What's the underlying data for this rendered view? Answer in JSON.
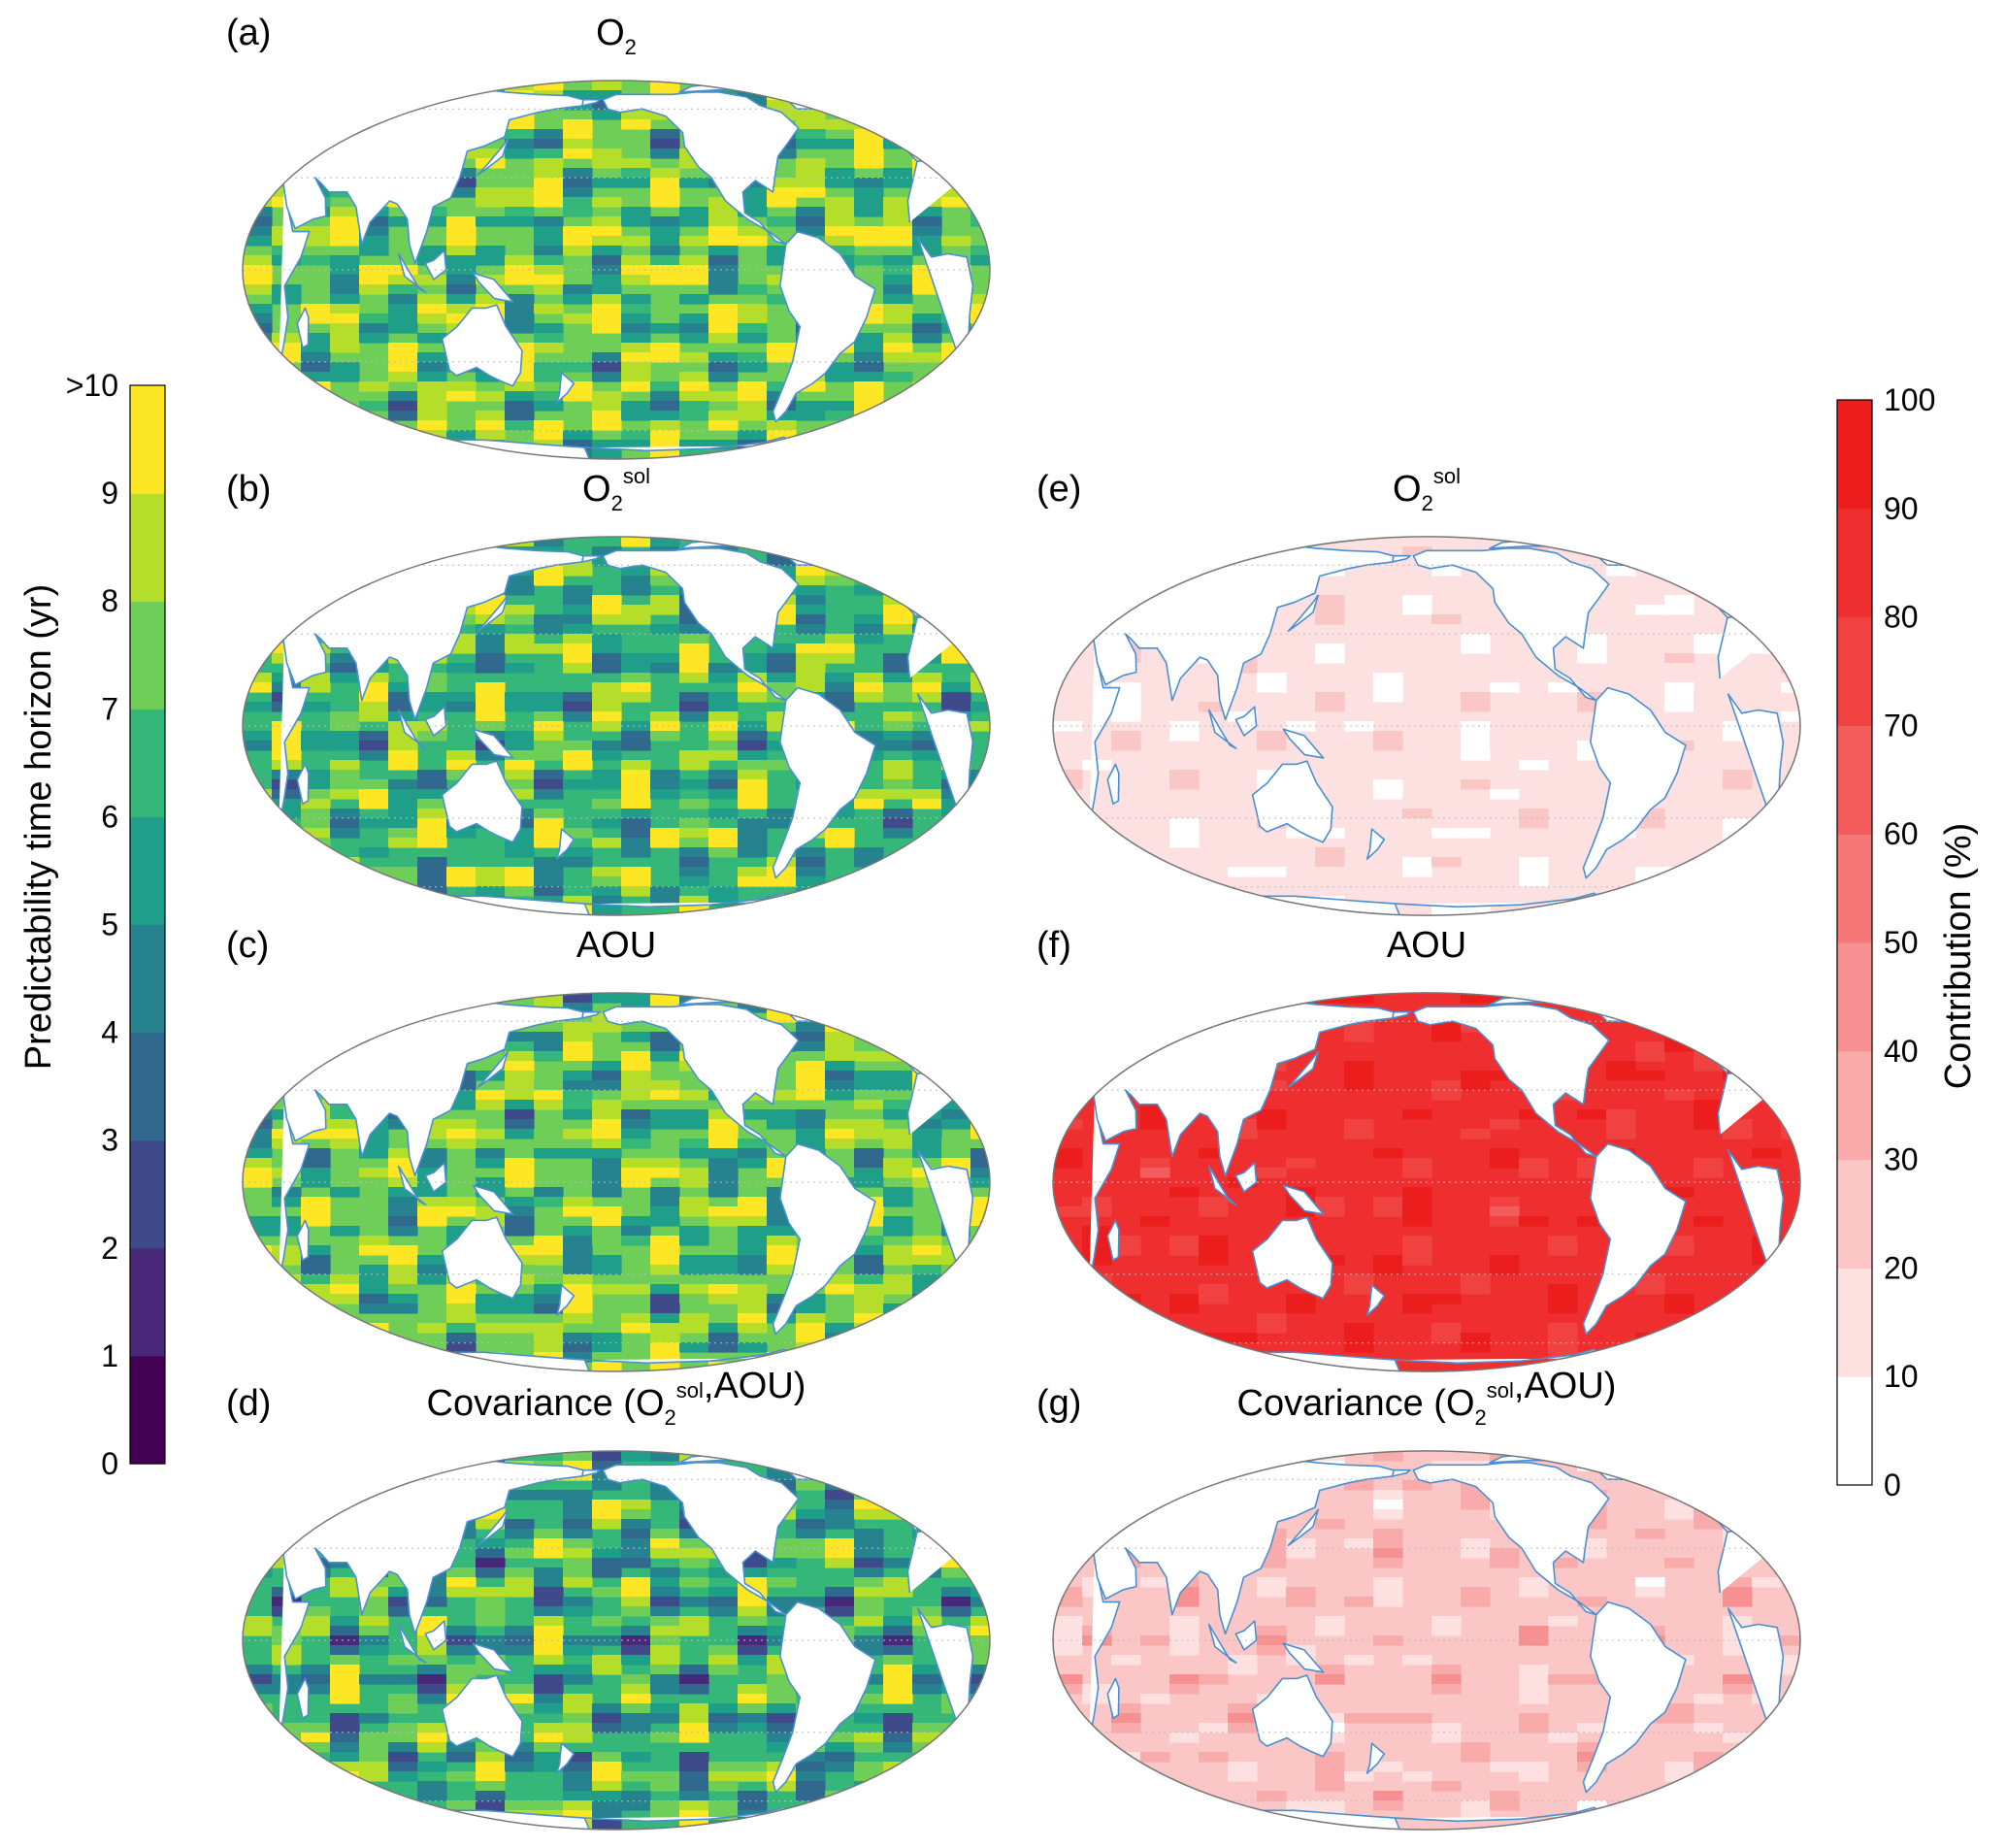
{
  "panels": [
    {
      "id": "a",
      "letter": "(a)",
      "title": "O",
      "sub": "2",
      "sup": "",
      "suffix": "",
      "colormap": "viridis",
      "base": 0.72,
      "amp": 0.5
    },
    {
      "id": "b",
      "letter": "(b)",
      "title": "O",
      "sub": "2",
      "sup": "sol",
      "suffix": "",
      "colormap": "viridis",
      "base": 0.68,
      "amp": 0.5
    },
    {
      "id": "c",
      "letter": "(c)",
      "title": "AOU",
      "sub": "",
      "sup": "",
      "suffix": "",
      "colormap": "viridis",
      "base": 0.7,
      "amp": 0.5
    },
    {
      "id": "d",
      "letter": "(d)",
      "title": "Covariance (O",
      "sub": "2",
      "sup": "sol",
      "suffix": ",AOU)",
      "colormap": "viridis",
      "base": 0.62,
      "amp": 0.55
    },
    {
      "id": "e",
      "letter": "(e)",
      "title": "O",
      "sub": "2",
      "sup": "sol",
      "suffix": "",
      "colormap": "reds",
      "base": 0.1,
      "amp": 0.18
    },
    {
      "id": "f",
      "letter": "(f)",
      "title": "AOU",
      "sub": "",
      "sup": "",
      "suffix": "",
      "colormap": "reds",
      "base": 0.86,
      "amp": 0.18
    },
    {
      "id": "g",
      "letter": "(g)",
      "title": "Covariance (O",
      "sub": "2",
      "sup": "sol",
      "suffix": ",AOU)",
      "colormap": "reds",
      "base": 0.26,
      "amp": 0.2
    }
  ],
  "colorbar_left": {
    "label": "Predictability time horizon (yr)",
    "ticks": [
      "0",
      "1",
      "2",
      "3",
      "4",
      "5",
      "6",
      "7",
      "8",
      "9",
      ">10"
    ],
    "colors": [
      "#440154",
      "#482878",
      "#3e4a89",
      "#31688e",
      "#26828e",
      "#1f9e89",
      "#35b779",
      "#6ece58",
      "#b5de2b",
      "#fde725"
    ]
  },
  "colorbar_right": {
    "label": "Contribution (%)",
    "ticks": [
      "0",
      "10",
      "20",
      "30",
      "40",
      "50",
      "60",
      "70",
      "80",
      "90",
      "100"
    ],
    "colors": [
      "#ffffff",
      "#fde0e0",
      "#fbc6c6",
      "#f9abab",
      "#f79191",
      "#f57777",
      "#f35c5c",
      "#f14242",
      "#ef2f2f",
      "#ec1d1d"
    ]
  },
  "colors": {
    "coastline": "#4a8fd0",
    "land": "#ffffff",
    "frame": "#777777",
    "grid": "#bbbbbb"
  }
}
